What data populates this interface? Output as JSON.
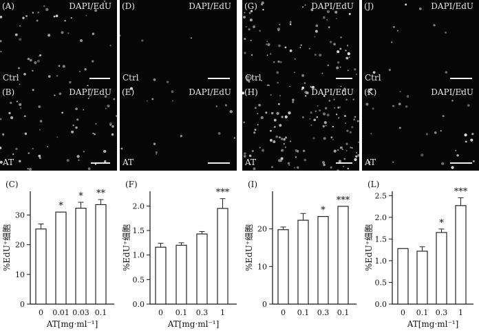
{
  "micrographs": [
    {
      "letter": "(A)",
      "stain": "DAPI/EdU",
      "condition": "Ctrl",
      "density": 45
    },
    {
      "letter": "(D)",
      "stain": "DAPI/EdU",
      "condition": "Ctrl",
      "density": 5
    },
    {
      "letter": "(G)",
      "stain": "DAPI/EdU",
      "condition": "Ctrl",
      "density": 80
    },
    {
      "letter": "(J)",
      "stain": "DAPI/EdU",
      "condition": "Ctrl",
      "density": 10
    },
    {
      "letter": "(B)",
      "stain": "DAPI/EdU",
      "condition": "AT",
      "density": 60
    },
    {
      "letter": "(E)",
      "stain": "DAPI/EdU",
      "condition": "AT",
      "density": 15
    },
    {
      "letter": "(H)",
      "stain": "DAPI/EdU",
      "condition": "AT",
      "density": 130
    },
    {
      "letter": "(K)",
      "stain": "DAPI/EdU",
      "condition": "AT",
      "density": 30
    }
  ],
  "chart_data": [
    {
      "type": "bar",
      "panel_label": "(C)",
      "ylabel": "%EdU⁺细胞",
      "xlabel": "AT[mg·ml⁻¹]",
      "categories": [
        "0",
        "0.01",
        "0.03",
        "0.1"
      ],
      "values": [
        25.3,
        31.0,
        32.3,
        33.5
      ],
      "errors": [
        1.7,
        0.0,
        2.0,
        1.7
      ],
      "significance": [
        "",
        "*",
        "*",
        "**"
      ],
      "ylim": [
        0,
        38
      ],
      "yticks": [
        0,
        10,
        20,
        30
      ]
    },
    {
      "type": "bar",
      "panel_label": "(F)",
      "ylabel": "%EdU⁺细胞",
      "xlabel": "AT[mg·ml⁻¹]",
      "categories": [
        "0",
        "0.1",
        "0.3",
        "1"
      ],
      "values": [
        1.16,
        1.2,
        1.43,
        1.95
      ],
      "errors": [
        0.08,
        0.05,
        0.05,
        0.2
      ],
      "significance": [
        "",
        "",
        "",
        "***"
      ],
      "ylim": [
        0,
        2.3
      ],
      "yticks": [
        0.0,
        0.5,
        1.0,
        1.5,
        2.0
      ]
    },
    {
      "type": "bar",
      "panel_label": "(I)",
      "ylabel": "%EdU⁺细胞",
      "xlabel": "",
      "categories": [
        "0",
        "0.1",
        "0.3",
        "0.1"
      ],
      "values": [
        19.8,
        22.3,
        23.3,
        26.0
      ],
      "errors": [
        0.7,
        1.8,
        0.0,
        0.0
      ],
      "significance": [
        "",
        "",
        "*",
        "***"
      ],
      "ylim": [
        0,
        30
      ],
      "yticks": [
        0,
        10,
        20
      ]
    },
    {
      "type": "bar",
      "panel_label": "(L)",
      "ylabel": "%EdU⁺细胞",
      "xlabel": "AT[mg·ml⁻¹]",
      "categories": [
        "0",
        "0.1",
        "0.3",
        "1"
      ],
      "values": [
        1.28,
        1.22,
        1.65,
        2.27
      ],
      "errors": [
        0.0,
        0.1,
        0.08,
        0.18
      ],
      "significance": [
        "",
        "",
        "*",
        "***"
      ],
      "ylim": [
        0,
        2.6
      ],
      "yticks": [
        0.0,
        0.5,
        1.0,
        1.5,
        2.0,
        2.5
      ]
    }
  ]
}
